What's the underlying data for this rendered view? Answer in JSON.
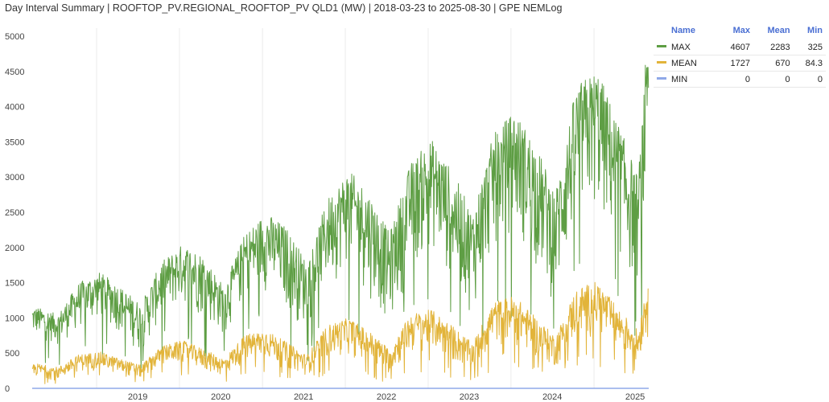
{
  "chart_data": {
    "type": "line",
    "title": "Day Interval Summary | ROOFTOP_PV.REGIONAL_ROOFTOP_PV QLD1 (MW) | 2018-03-23 to 2025-08-30 | GPE NEMLog",
    "xlabel": "",
    "ylabel": "",
    "x_range": [
      "2018-03-23",
      "2025-08-30"
    ],
    "x_ticks": [
      "2019",
      "2020",
      "2021",
      "2022",
      "2023",
      "2024",
      "2025"
    ],
    "y_ticks": [
      "0",
      "500",
      "1000",
      "1500",
      "2000",
      "2500",
      "3000",
      "3500",
      "4000",
      "4500",
      "5000"
    ],
    "ylim": [
      0,
      5000
    ],
    "grid": "vertical",
    "legend_position": "right",
    "legend_headers": {
      "name": "Name",
      "max": "Max",
      "mean": "Mean",
      "min": "Min"
    },
    "series": [
      {
        "name": "MAX",
        "color": "#5e9e44",
        "max": "4607",
        "mean": "2283",
        "min": "325",
        "x": [
          "2018-04",
          "2018-07",
          "2018-10",
          "2019-01",
          "2019-04",
          "2019-07",
          "2019-10",
          "2020-01",
          "2020-04",
          "2020-07",
          "2020-10",
          "2021-01",
          "2021-04",
          "2021-07",
          "2021-10",
          "2022-01",
          "2022-04",
          "2022-07",
          "2022-10",
          "2023-01",
          "2023-04",
          "2023-07",
          "2023-10",
          "2024-01",
          "2024-04",
          "2024-07",
          "2024-10",
          "2025-01",
          "2025-04",
          "2025-07",
          "2025-08"
        ],
        "upper": [
          1150,
          1050,
          1500,
          1650,
          1450,
          1200,
          1800,
          2050,
          1900,
          1450,
          2200,
          2500,
          2300,
          1800,
          2700,
          3100,
          2800,
          2200,
          3200,
          3550,
          3100,
          2500,
          3600,
          3950,
          3500,
          2800,
          4300,
          4550,
          3800,
          3000,
          4600
        ],
        "lower": [
          700,
          600,
          800,
          950,
          750,
          450,
          950,
          1150,
          950,
          700,
          1200,
          1350,
          1050,
          800,
          1400,
          1700,
          1250,
          850,
          1600,
          1900,
          1450,
          1000,
          1900,
          2150,
          1650,
          1100,
          2200,
          2400,
          1800,
          1300,
          2300
        ]
      },
      {
        "name": "MEAN",
        "color": "#e2b43a",
        "max": "1727",
        "mean": "670",
        "min": "84.3",
        "x": [
          "2018-04",
          "2018-07",
          "2018-10",
          "2019-01",
          "2019-04",
          "2019-07",
          "2019-10",
          "2020-01",
          "2020-04",
          "2020-07",
          "2020-10",
          "2021-01",
          "2021-04",
          "2021-07",
          "2021-10",
          "2022-01",
          "2022-04",
          "2022-07",
          "2022-10",
          "2023-01",
          "2023-04",
          "2023-07",
          "2023-10",
          "2024-01",
          "2024-04",
          "2024-07",
          "2024-10",
          "2025-01",
          "2025-04",
          "2025-07",
          "2025-08"
        ],
        "upper": [
          350,
          300,
          480,
          520,
          420,
          330,
          600,
          680,
          560,
          420,
          760,
          830,
          660,
          470,
          900,
          1000,
          820,
          560,
          1060,
          1120,
          900,
          640,
          1230,
          1320,
          1020,
          740,
          1420,
          1520,
          1150,
          820,
          1420
        ],
        "lower": [
          150,
          100,
          230,
          250,
          170,
          120,
          300,
          340,
          230,
          150,
          340,
          400,
          250,
          180,
          400,
          460,
          300,
          180,
          450,
          520,
          340,
          210,
          560,
          610,
          400,
          260,
          650,
          720,
          460,
          300,
          700
        ]
      },
      {
        "name": "MIN",
        "color": "#8fa8e8",
        "max": "0",
        "mean": "0",
        "min": "0",
        "x": [
          "2018-03-23",
          "2025-08-30"
        ],
        "values": [
          0,
          0
        ]
      }
    ]
  }
}
